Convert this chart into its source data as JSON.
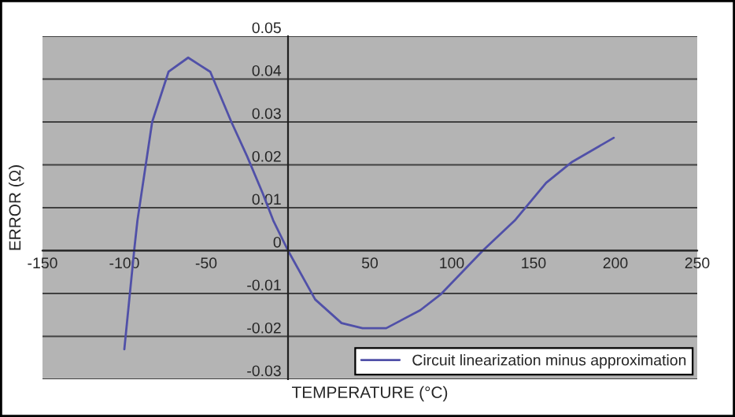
{
  "chart_data": {
    "type": "line",
    "xlabel": "TEMPERATURE (°C)",
    "ylabel": "ERROR (Ω)",
    "xlim": [
      -150,
      250
    ],
    "xticks": [
      -150,
      -100,
      -50,
      50,
      100,
      150,
      200,
      250
    ],
    "ylim": [
      -0.03,
      0.05
    ],
    "yticks": [
      -0.03,
      -0.02,
      -0.01,
      0,
      0.01,
      0.02,
      0.03,
      0.04,
      0.05
    ],
    "grid": "y",
    "legend": "bottom right",
    "marker": "none",
    "line_style": "solid",
    "series": [
      {
        "name": "Circuit linearization minus approximation",
        "color": "#5050a8",
        "x": [
          -100,
          -94,
          -92,
          -83,
          -73,
          -61,
          -47.5,
          -34.6,
          -25,
          -15.4,
          -9,
          0,
          16.6,
          32.7,
          45.5,
          60,
          80.8,
          93.6,
          119,
          138.5,
          157.7,
          173.6,
          199
        ],
        "values": [
          -0.023,
          0,
          0.007,
          0.03,
          0.0417,
          0.045,
          0.0417,
          0.03,
          0.022,
          0.0133,
          0.007,
          0,
          -0.0114,
          -0.0169,
          -0.0181,
          -0.0181,
          -0.0139,
          -0.0101,
          0,
          0.007,
          0.0158,
          0.0207,
          0.0263
        ]
      }
    ]
  }
}
